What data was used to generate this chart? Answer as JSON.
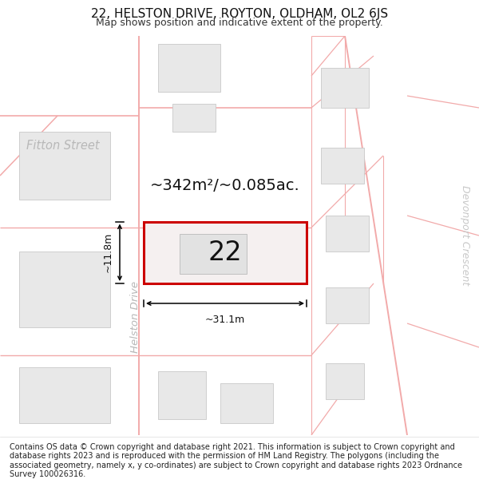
{
  "title": "22, HELSTON DRIVE, ROYTON, OLDHAM, OL2 6JS",
  "subtitle": "Map shows position and indicative extent of the property.",
  "footer": "Contains OS data © Crown copyright and database right 2021. This information is subject to Crown copyright and database rights 2023 and is reproduced with the permission of HM Land Registry. The polygons (including the associated geometry, namely x, y co-ordinates) are subject to Crown copyright and database rights 2023 Ordnance Survey 100026316.",
  "area_label": "~342m²/~0.085ac.",
  "width_label": "~31.1m",
  "height_label": "~11.8m",
  "number_label": "22",
  "bg_color": "#ffffff",
  "map_bg": "#ffffff",
  "building_fill": "#e8e8e8",
  "building_edge": "#c8c8c8",
  "highlight_fill": "#f5f0f0",
  "highlight_border": "#cc0000",
  "road_color": "#f2aaaa",
  "street_label_color": "#b8b8b8",
  "street_label_color2": "#c8c8c8",
  "dim_line_color": "#000000",
  "title_fontsize": 11,
  "subtitle_fontsize": 9,
  "footer_fontsize": 7.0,
  "area_label_fontsize": 14,
  "number_label_fontsize": 24,
  "dim_label_fontsize": 9,
  "street_label_fontsize": 10.5
}
